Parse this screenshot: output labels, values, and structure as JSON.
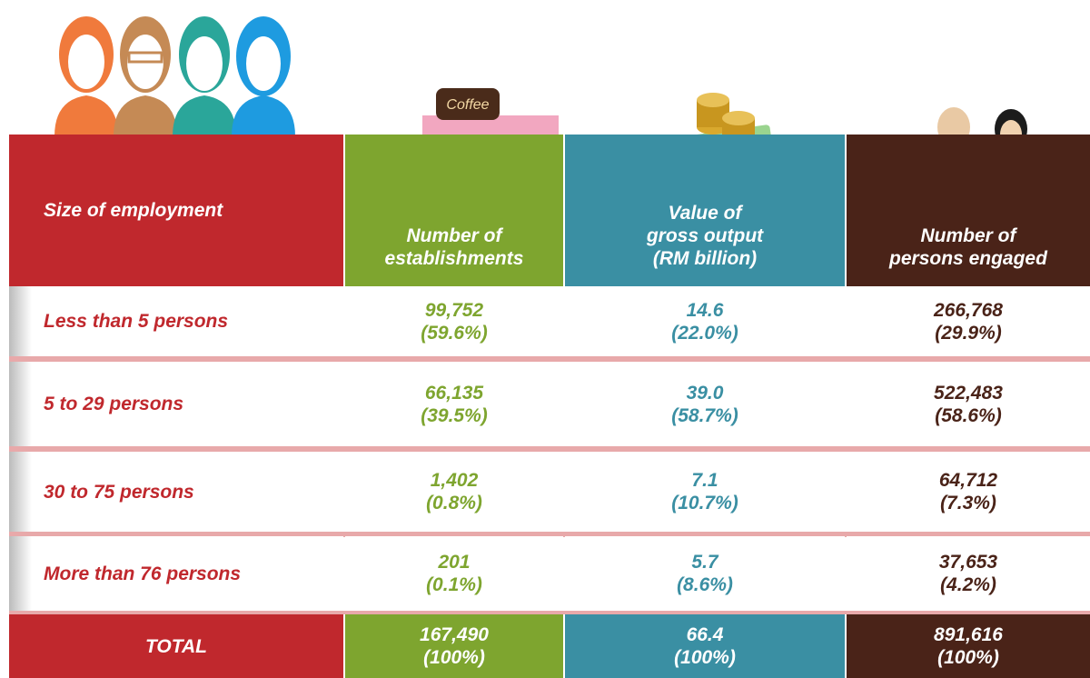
{
  "table": {
    "header": [
      [
        "Size of employment"
      ],
      [
        "Number of",
        "establishments"
      ],
      [
        "Value of",
        "gross output",
        "(RM billion)"
      ],
      [
        "Number of",
        "persons engaged"
      ]
    ],
    "rows": [
      {
        "label": "Less than 5 persons",
        "cells": [
          [
            "99,752",
            "(59.6%)"
          ],
          [
            "14.6",
            "(22.0%)"
          ],
          [
            "266,768",
            "(29.9%)"
          ]
        ]
      },
      {
        "label": "5 to 29 persons",
        "cells": [
          [
            "66,135",
            "(39.5%)"
          ],
          [
            "39.0",
            "(58.7%)"
          ],
          [
            "522,483",
            "(58.6%)"
          ]
        ]
      },
      {
        "label": "30 to 75 persons",
        "cells": [
          [
            "1,402",
            "(0.8%)"
          ],
          [
            "7.1",
            "(10.7%)"
          ],
          [
            "64,712",
            "(7.3%)"
          ]
        ]
      },
      {
        "label": "More than 76 persons",
        "cells": [
          [
            "201",
            "(0.1%)"
          ],
          [
            "5.7",
            "(8.6%)"
          ],
          [
            "37,653",
            "(4.2%)"
          ]
        ]
      }
    ],
    "total": {
      "label": "TOTAL",
      "cells": [
        [
          "167,490",
          "(100%)"
        ],
        [
          "66.4",
          "(100%)"
        ],
        [
          "891,616",
          "(100%)"
        ]
      ]
    }
  }
}
